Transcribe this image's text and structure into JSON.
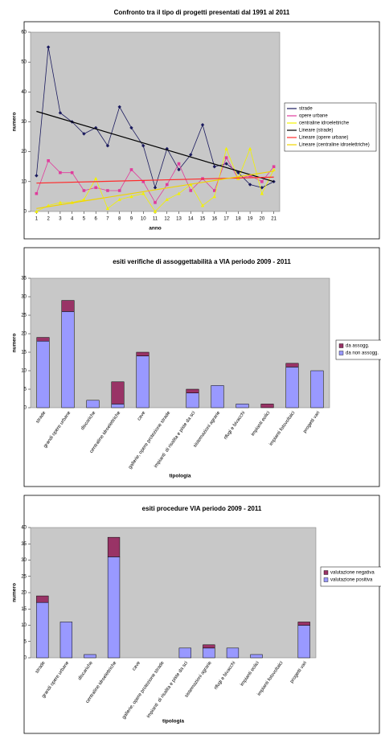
{
  "chart_data": [
    {
      "type": "line",
      "title": "Confronto tra il tipo di progetti presentati dal 1991 al 2011",
      "x_label": "anno",
      "y_label": "numero",
      "x": [
        1,
        2,
        3,
        4,
        5,
        6,
        7,
        8,
        9,
        10,
        11,
        12,
        13,
        14,
        15,
        16,
        17,
        18,
        19,
        20,
        21
      ],
      "xlim": [
        0.5,
        21.5
      ],
      "xticks": [
        1,
        2,
        3,
        4,
        5,
        6,
        7,
        8,
        9,
        10,
        11,
        12,
        13,
        14,
        15,
        16,
        17,
        18,
        19,
        20,
        21
      ],
      "ylim": [
        0,
        60
      ],
      "yticks": [
        0,
        10,
        20,
        30,
        40,
        50,
        60
      ],
      "legend": "right",
      "series": [
        {
          "name": "strade",
          "color": "#1a1a5e",
          "marker": "diamond",
          "values": [
            12,
            55,
            33,
            30,
            26,
            28,
            22,
            35,
            28,
            22,
            8,
            21,
            14,
            19,
            29,
            15,
            16,
            13,
            9,
            8,
            10
          ]
        },
        {
          "name": "opere urbane",
          "color": "#e03c9c",
          "marker": "square",
          "values": [
            6,
            17,
            13,
            13,
            7,
            8,
            7,
            7,
            14,
            10,
            3,
            9,
            16,
            7,
            11,
            7,
            18,
            11,
            12,
            10,
            15
          ]
        },
        {
          "name": "centraline idroelettriche",
          "color": "#f2f200",
          "marker": "triangle",
          "values": [
            0,
            2,
            3,
            3,
            4,
            11,
            1,
            4,
            5,
            6,
            0,
            4,
            6,
            9,
            2,
            5,
            21,
            11,
            21,
            6,
            14
          ]
        },
        {
          "name": "Lineare (strade)",
          "color": "#000000",
          "x": [
            1,
            21
          ],
          "values": [
            33.5,
            10
          ]
        },
        {
          "name": "Lineare (opere urbane)",
          "color": "#ff2a2a",
          "x": [
            1,
            21
          ],
          "values": [
            9.5,
            11.5
          ]
        },
        {
          "name": "Lineare (centraline idroelettriche)",
          "color": "#f0d400",
          "x": [
            1,
            21
          ],
          "values": [
            1,
            13.5
          ]
        }
      ]
    },
    {
      "type": "bar",
      "stacked": true,
      "title": "esiti verifiche di assoggettabilità a VIA periodo 2009 - 2011",
      "x_label": "tipologia",
      "y_label": "numero",
      "categories": [
        "strade",
        "grandi opere urbane",
        "discariche",
        "centraline idroelettriche",
        "cave",
        "gallerie, opere protezione strade",
        "impianti  di risalita e piste da sci",
        "sistemazioni agrarie",
        "rifugi e bivacchi",
        "impianti eolici",
        "impianti fotovoltaici",
        "progetti vari"
      ],
      "ylim": [
        0,
        35
      ],
      "yticks": [
        0,
        5,
        10,
        15,
        20,
        25,
        30,
        35
      ],
      "legend": "right",
      "series": [
        {
          "name": "da non assogg.",
          "color": "#9999ff",
          "values": [
            18,
            26,
            2,
            1,
            14,
            0,
            4,
            6,
            1,
            0,
            11,
            10
          ]
        },
        {
          "name": "da assogg.",
          "color": "#993366",
          "values": [
            1,
            3,
            0,
            6,
            1,
            0,
            1,
            0,
            0,
            1,
            1,
            0
          ]
        }
      ]
    },
    {
      "type": "bar",
      "stacked": true,
      "title": "esiti procedure VIA periodo 2009 - 2011",
      "x_label": "tipologia",
      "y_label": "numero",
      "categories": [
        "strade",
        "grandi opere urbane",
        "discariche",
        "centraline idroelettriche",
        "cave",
        "gallerie, opere protezione strade",
        "impianti  di risalita e piste da sci",
        "sistemazioni agrarie",
        "rifugi e bivacchi",
        "impianti eolici",
        "impianti fotovoltaici",
        "progetti vari"
      ],
      "ylim": [
        0,
        40
      ],
      "yticks": [
        0,
        5,
        10,
        15,
        20,
        25,
        30,
        35,
        40
      ],
      "legend": "right",
      "series": [
        {
          "name": "valutazione positiva",
          "color": "#9999ff",
          "values": [
            17,
            11,
            1,
            31,
            0,
            0,
            3,
            3,
            3,
            1,
            0,
            10
          ]
        },
        {
          "name": "valutazione negativa",
          "color": "#993366",
          "values": [
            2,
            0,
            0,
            6,
            0,
            0,
            0,
            1,
            0,
            0,
            0,
            1
          ]
        }
      ]
    }
  ]
}
